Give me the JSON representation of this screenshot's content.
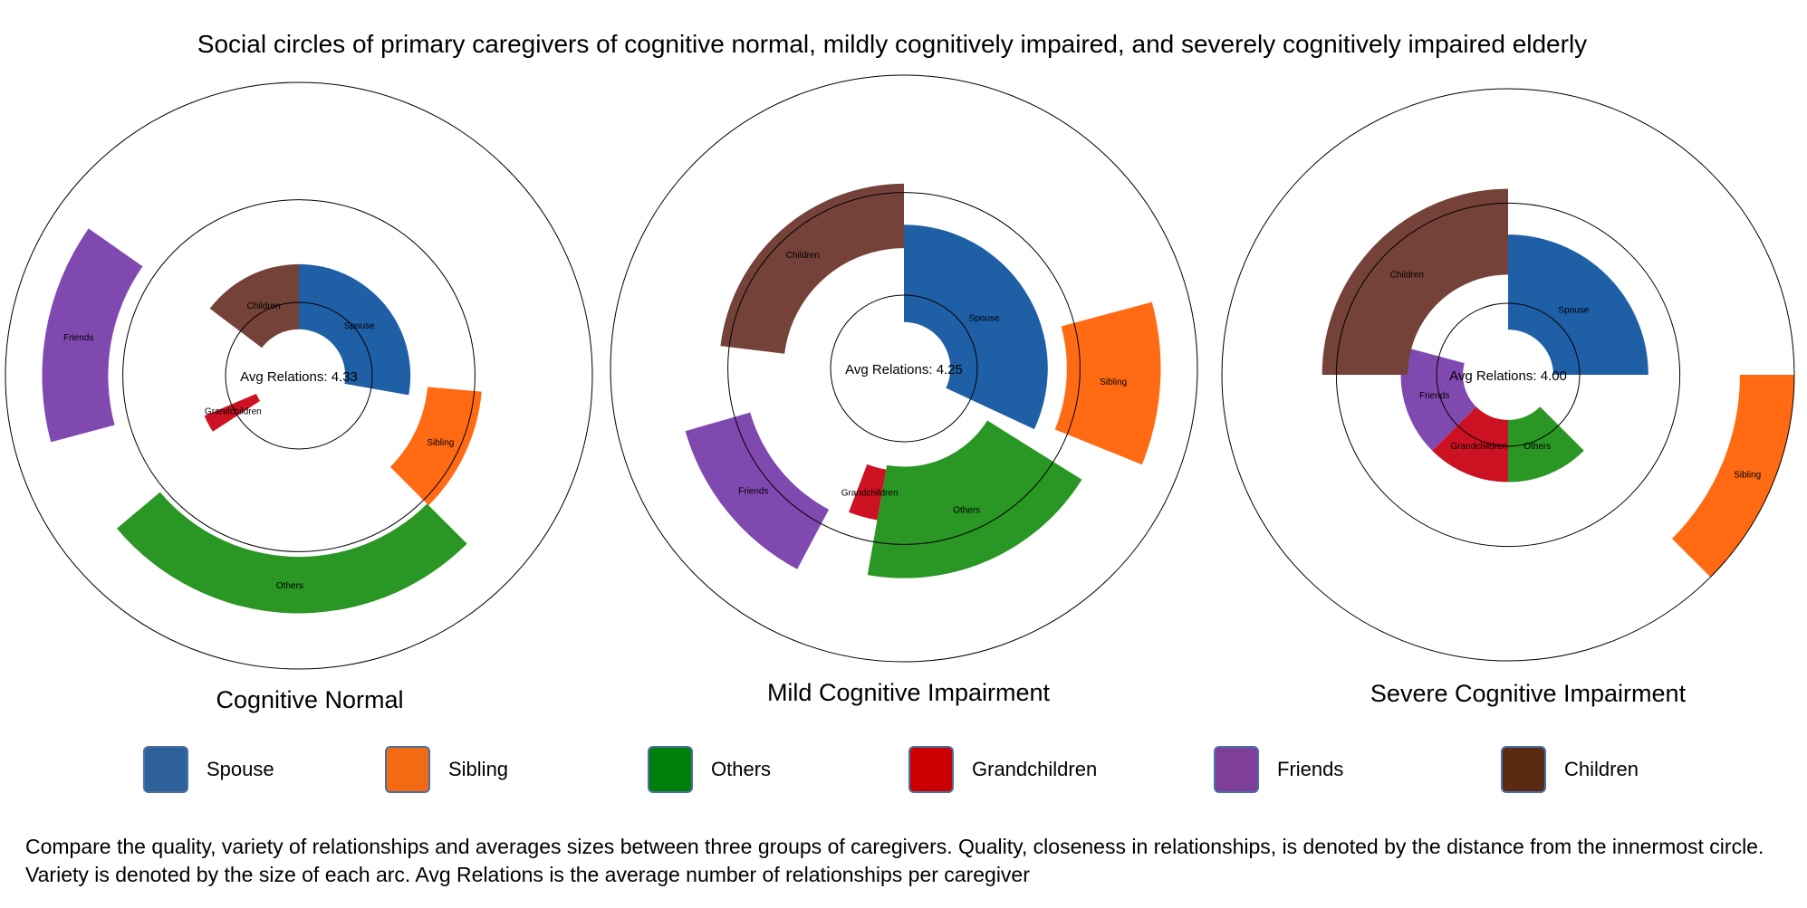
{
  "chart_data": {
    "type": "radial-social-circles",
    "title": "Social circles of primary caregivers of cognitive normal, mildly cognitively impaired, and severely cognitively impaired elderly",
    "colors": {
      "Spouse": "#1f5fa6",
      "Sibling": "#ff6a13",
      "Others": "#2a9624",
      "Grandchildren": "#cc1122",
      "Friends": "#8049b0",
      "Children": "#744238"
    },
    "charts": [
      {
        "name": "Cognitive Normal",
        "avg_label": "Avg Relations: 4.33",
        "arcs": [
          {
            "label": "Spouse",
            "start": 0,
            "end": 100,
            "inner": 0.316,
            "outer": 0.76
          },
          {
            "label": "Sibling",
            "start": 95,
            "end": 135,
            "inner": 0.88,
            "outer": 1.25
          },
          {
            "label": "Others",
            "start": 135,
            "end": 230,
            "inner": 1.235,
            "outer": 1.62
          },
          {
            "label": "Grandchildren",
            "start": 237,
            "end": 247,
            "inner": 0.316,
            "outer": 0.7
          },
          {
            "label": "Friends",
            "start": 255,
            "end": 305,
            "inner": 1.3,
            "outer": 1.75
          },
          {
            "label": "Children",
            "start": 307,
            "end": 360,
            "inner": 0.316,
            "outer": 0.76
          }
        ]
      },
      {
        "name": "Mild Cognitive Impairment",
        "avg_label": "Avg Relations: 4.25",
        "arcs": [
          {
            "label": "Spouse",
            "start": 0,
            "end": 115,
            "inner": 0.316,
            "outer": 0.98
          },
          {
            "label": "Sibling",
            "start": 75,
            "end": 112,
            "inner": 1.11,
            "outer": 1.75
          },
          {
            "label": "Others",
            "start": 122,
            "end": 190,
            "inner": 0.67,
            "outer": 1.43
          },
          {
            "label": "Grandchildren",
            "start": 190,
            "end": 201,
            "inner": 0.7,
            "outer": 1.05
          },
          {
            "label": "Friends",
            "start": 208,
            "end": 254,
            "inner": 1.09,
            "outer": 1.55
          },
          {
            "label": "Children",
            "start": 277,
            "end": 360,
            "inner": 0.82,
            "outer": 1.26
          }
        ]
      },
      {
        "name": "Severe Cognitive Impairment",
        "avg_label": "Avg Relations: 4.00",
        "arcs": [
          {
            "label": "Spouse",
            "start": 0,
            "end": 90,
            "inner": 0.316,
            "outer": 0.98
          },
          {
            "label": "Sibling",
            "start": 90,
            "end": 135,
            "inner": 1.62,
            "outer": 2.0
          },
          {
            "label": "Others",
            "start": 135,
            "end": 180,
            "inner": 0.316,
            "outer": 0.75
          },
          {
            "label": "Grandchildren",
            "start": 180,
            "end": 225,
            "inner": 0.316,
            "outer": 0.75
          },
          {
            "label": "Friends",
            "start": 225,
            "end": 285,
            "inner": 0.316,
            "outer": 0.75
          },
          {
            "label": "Children",
            "start": 270,
            "end": 360,
            "inner": 0.7,
            "outer": 1.3
          }
        ]
      }
    ]
  },
  "legend": [
    {
      "label": "Spouse",
      "color": "#2e619a"
    },
    {
      "label": "Sibling",
      "color": "#f26b12"
    },
    {
      "label": "Others",
      "color": "#00800b"
    },
    {
      "label": "Grandchildren",
      "color": "#cc0000"
    },
    {
      "label": "Friends",
      "color": "#7f3f98"
    },
    {
      "label": "Children",
      "color": "#5a2b12"
    }
  ],
  "caption": "Compare the quality, variety of relationships and averages sizes between three groups of caregivers. Quality, closeness in relationships, is denoted by the distance from the innermost circle. Variety is denoted by the size of each arc. Avg Relations is the average number of relationships per caregiver"
}
